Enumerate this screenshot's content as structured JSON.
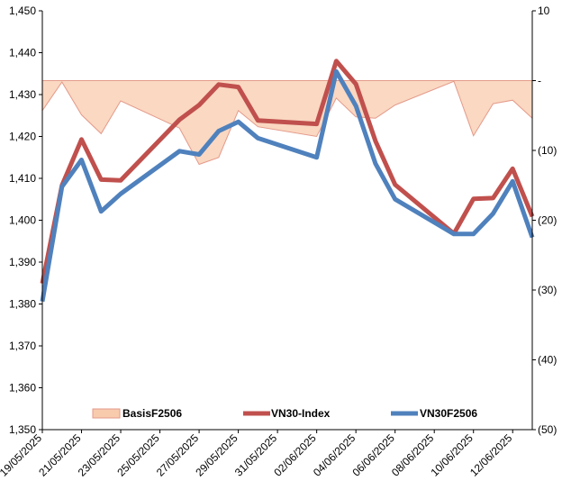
{
  "chart_data": {
    "type": "line",
    "title": "",
    "xlabel": "",
    "ylabel": "",
    "x": [
      "19/05/2025",
      "20/05/2025",
      "21/05/2025",
      "22/05/2025",
      "23/05/2025",
      "26/05/2025",
      "27/05/2025",
      "28/05/2025",
      "29/05/2025",
      "30/05/2025",
      "02/06/2025",
      "03/06/2025",
      "04/06/2025",
      "05/06/2025",
      "06/06/2025",
      "09/06/2025",
      "10/06/2025",
      "11/06/2025",
      "12/06/2025",
      "13/06/2025"
    ],
    "x_tick_labels": [
      "19/05/2025",
      "21/05/2025",
      "23/05/2025",
      "25/05/2025",
      "27/05/2025",
      "29/05/2025",
      "31/05/2025",
      "02/06/2025",
      "04/06/2025",
      "06/06/2025",
      "08/06/2025",
      "10/06/2025",
      "12/06/2025"
    ],
    "x_range": [
      "19/05/2025",
      "13/06/2025"
    ],
    "ylim": [
      1350,
      1450
    ],
    "y_ticks": [
      "1,350",
      "1,360",
      "1,370",
      "1,380",
      "1,390",
      "1,400",
      "1,410",
      "1,420",
      "1,430",
      "1,440",
      "1,450"
    ],
    "y2lim": [
      -50,
      10
    ],
    "y2_ticks": [
      "(50)",
      "(40)",
      "(30)",
      "(20)",
      "(10)",
      "-",
      "10"
    ],
    "grid": false,
    "legend_position": "bottom",
    "series": [
      {
        "name": "BasisF2506",
        "type": "area",
        "axis": "right",
        "color": "#f8cbad",
        "stroke": "#e49a8a",
        "values": [
          -4.3,
          -0.2,
          -4.9,
          -7.6,
          -2.9,
          -6.8,
          -12.0,
          -11.0,
          -4.3,
          -6.6,
          -8.0,
          -2.5,
          -5.2,
          -5.4,
          -3.5,
          -0.1,
          -7.9,
          -3.3,
          -2.8,
          -5.4
        ]
      },
      {
        "name": "VN30-Index",
        "type": "line",
        "axis": "left",
        "color": "#c0504d",
        "values": [
          1384.9,
          1408.3,
          1419.3,
          1409.7,
          1409.5,
          1424.0,
          1427.5,
          1432.4,
          1431.8,
          1423.8,
          1423.0,
          1438.0,
          1432.5,
          1418.9,
          1408.5,
          1396.8,
          1405.1,
          1405.3,
          1412.3,
          1400.9
        ]
      },
      {
        "name": "VN30F2506",
        "type": "line",
        "axis": "left",
        "color": "#4f81bd",
        "values": [
          1380.6,
          1408.0,
          1414.4,
          1402.1,
          1406.3,
          1416.5,
          1415.7,
          1421.3,
          1423.5,
          1419.6,
          1415.0,
          1435.5,
          1427.3,
          1413.5,
          1405.0,
          1396.7,
          1396.7,
          1401.6,
          1409.3,
          1395.9
        ]
      }
    ]
  }
}
